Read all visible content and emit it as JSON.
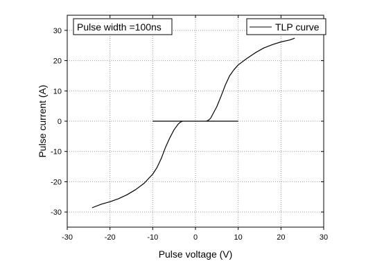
{
  "chart_data": {
    "type": "line",
    "title": "",
    "xlabel": "Pulse voltage (V)",
    "ylabel": "Pulse current (A)",
    "xlim": [
      -30,
      30
    ],
    "ylim": [
      -35,
      35
    ],
    "xticks": [
      -30,
      -20,
      -10,
      0,
      10,
      20,
      30
    ],
    "yticks": [
      -30,
      -20,
      -10,
      0,
      10,
      20,
      30
    ],
    "grid": "dotted",
    "legend_position": "top-right",
    "annotation": "Pulse width =100ns",
    "series": [
      {
        "name": "TLP curve",
        "segments": [
          {
            "x": [
              -10,
              -5,
              0,
              5,
              10
            ],
            "y": [
              0,
              0,
              0,
              0,
              0
            ]
          },
          {
            "x": [
              -24.2,
              -22,
              -20,
              -18,
              -16,
              -14,
              -12,
              -10,
              -9,
              -8,
              -7,
              -6,
              -5,
              -4,
              -3.5,
              -3
            ],
            "y": [
              -28.6,
              -27.4,
              -26.6,
              -25.6,
              -24.3,
              -22.6,
              -20.5,
              -17.5,
              -15.3,
              -12.3,
              -8.6,
              -5.5,
              -2.8,
              -0.9,
              -0.3,
              0
            ]
          },
          {
            "x": [
              2.5,
              3,
              3.5,
              4,
              5,
              6,
              7,
              8,
              9,
              10,
              12,
              14,
              16,
              18,
              20,
              22,
              23.2
            ],
            "y": [
              0,
              0.3,
              0.9,
              2.2,
              4.8,
              8.3,
              12.0,
              15.0,
              17.0,
              18.6,
              20.7,
              22.6,
              24.2,
              25.3,
              26.2,
              26.8,
              27.4
            ]
          }
        ]
      }
    ]
  }
}
